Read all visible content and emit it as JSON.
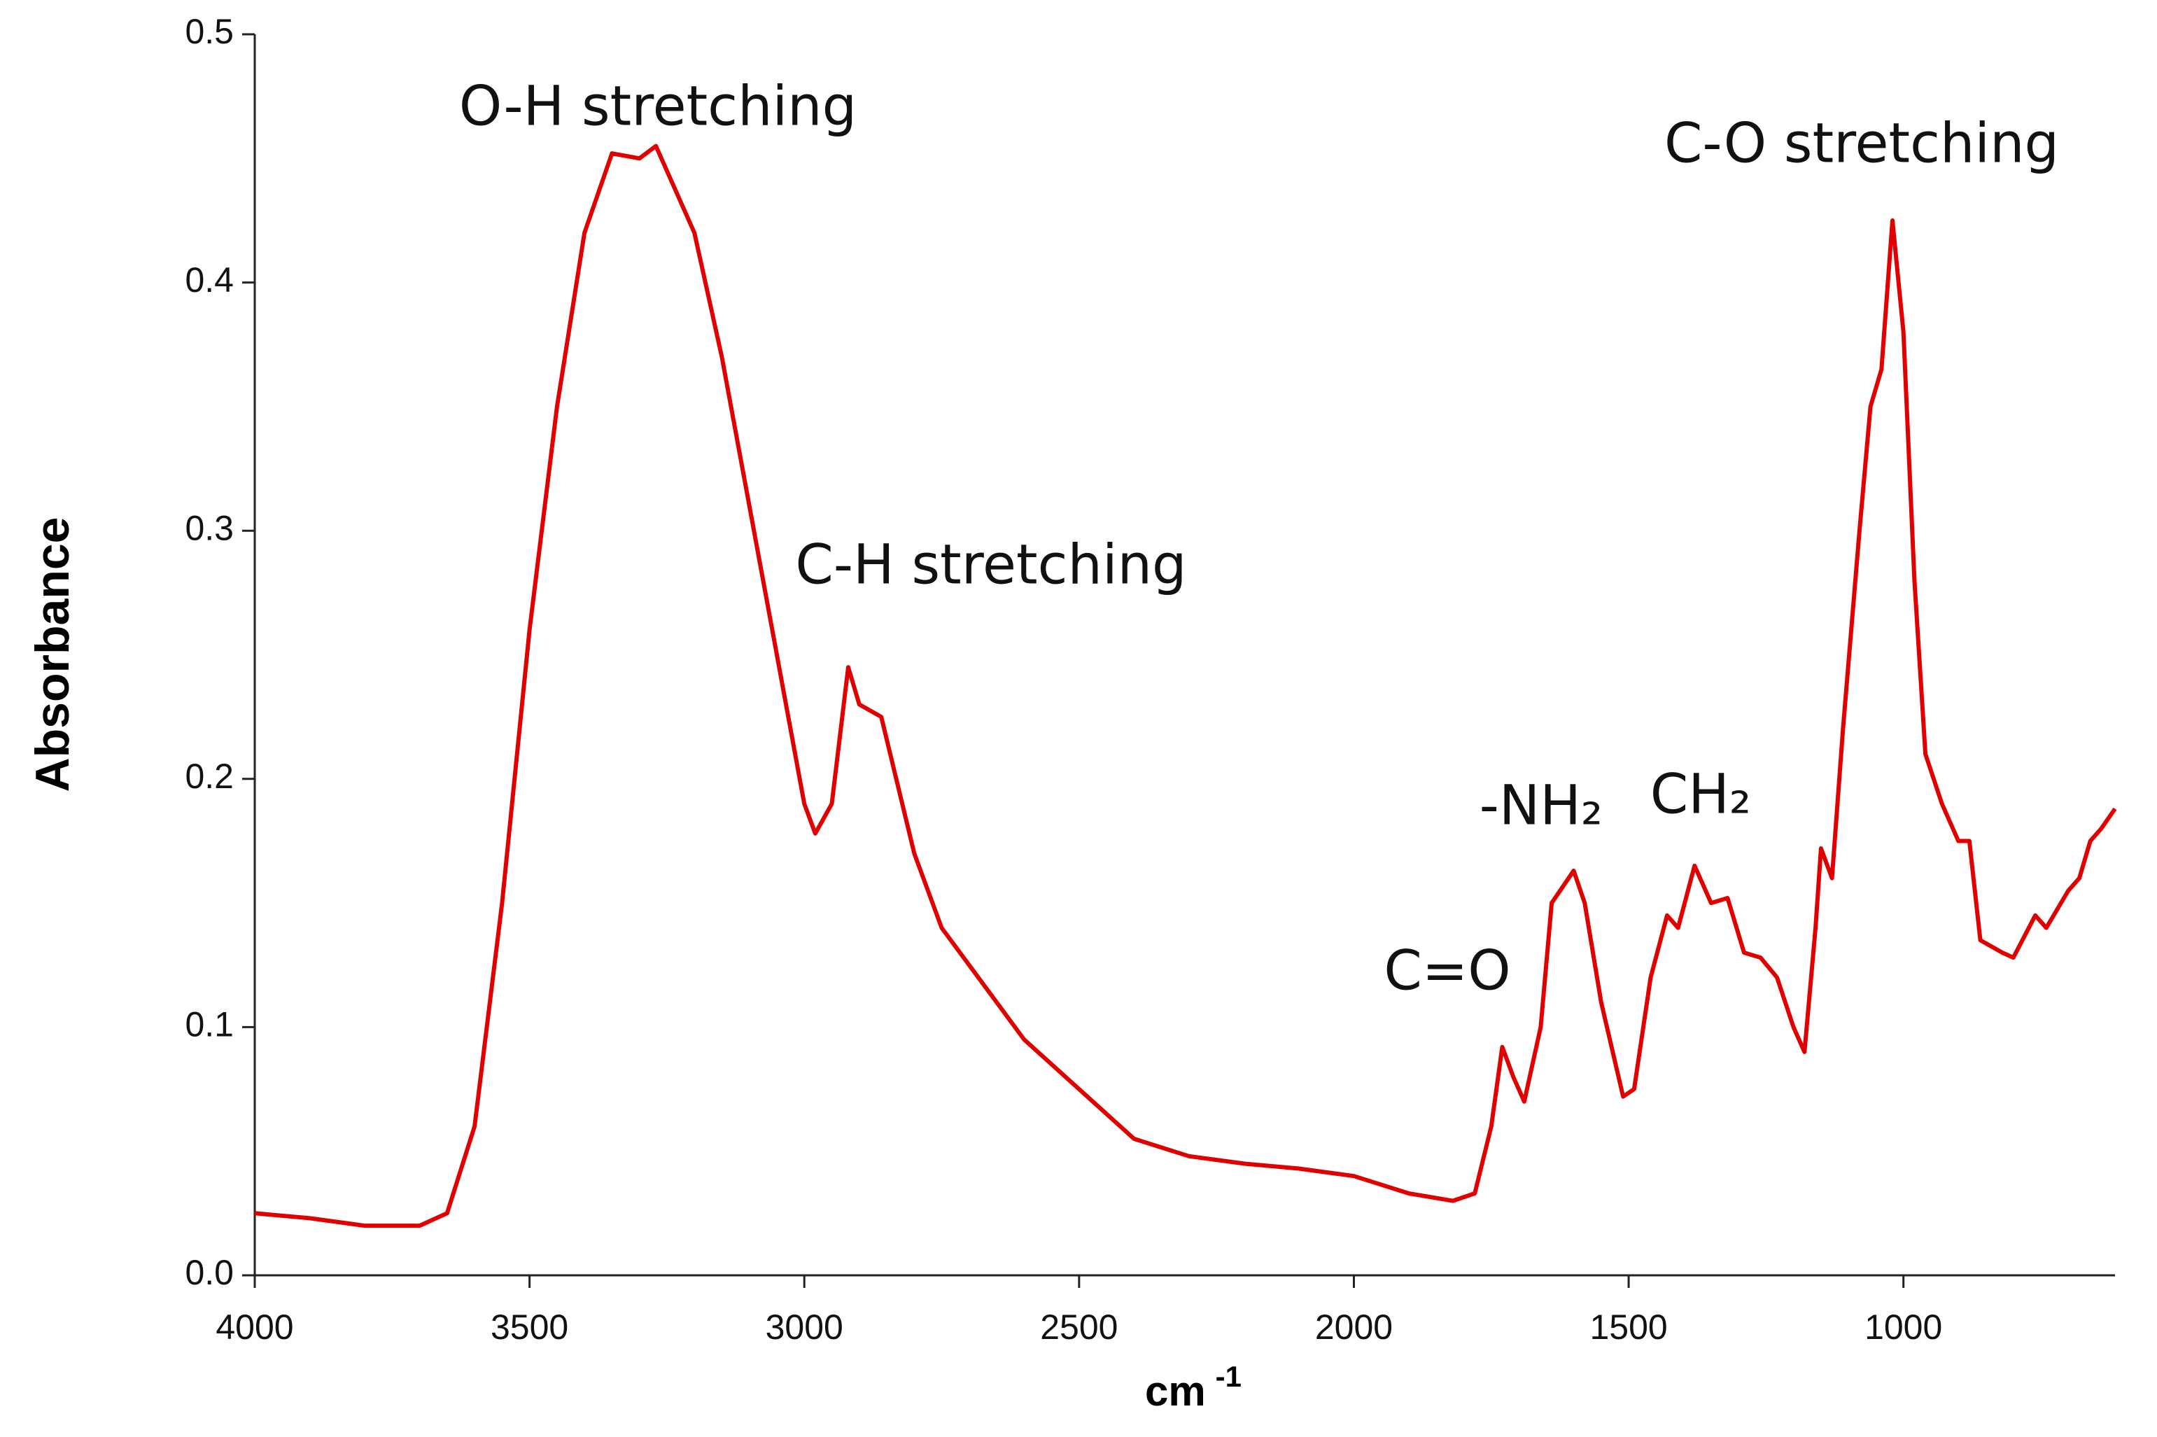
{
  "chart_data": {
    "type": "line",
    "x_label": "cm",
    "x_label_sup": "-1",
    "y_label": "Absorbance",
    "annotations": [
      "O-H stretching",
      "C-H stretching",
      "C-O stretching",
      "C=O",
      "-NH₂",
      "CH₂"
    ],
    "xlim": [
      4000,
      615
    ],
    "xticks": [
      4000,
      3500,
      3000,
      2500,
      2000,
      1500,
      1000
    ],
    "ylim": [
      0,
      0.5
    ],
    "yticks": [
      {
        "value": 0,
        "label": "0.0"
      },
      0.1,
      0.2,
      0.3,
      0.4,
      0.5
    ],
    "series": [
      {
        "color": "#e00000",
        "x": [
          4000,
          3900,
          3800,
          3700,
          3650,
          3600,
          3550,
          3500,
          3450,
          3400,
          3350,
          3300,
          3270,
          3200,
          3150,
          3100,
          3050,
          3000,
          2980,
          2950,
          2920,
          2900,
          2860,
          2800,
          2750,
          2700,
          2600,
          2500,
          2400,
          2300,
          2200,
          2100,
          2000,
          1900,
          1820,
          1780,
          1750,
          1730,
          1710,
          1690,
          1660,
          1640,
          1600,
          1580,
          1550,
          1510,
          1490,
          1460,
          1430,
          1410,
          1380,
          1350,
          1320,
          1290,
          1260,
          1230,
          1200,
          1180,
          1160,
          1150,
          1130,
          1110,
          1080,
          1060,
          1040,
          1020,
          1000,
          980,
          960,
          930,
          900,
          880,
          860,
          820,
          800,
          760,
          740,
          700,
          680,
          660,
          640,
          615
        ],
        "values": [
          0.025,
          0.023,
          0.02,
          0.02,
          0.025,
          0.06,
          0.15,
          0.26,
          0.35,
          0.42,
          0.452,
          0.45,
          0.455,
          0.42,
          0.37,
          0.31,
          0.25,
          0.19,
          0.178,
          0.19,
          0.245,
          0.23,
          0.225,
          0.17,
          0.14,
          0.125,
          0.095,
          0.075,
          0.055,
          0.048,
          0.045,
          0.043,
          0.04,
          0.033,
          0.03,
          0.033,
          0.06,
          0.092,
          0.08,
          0.07,
          0.1,
          0.15,
          0.163,
          0.15,
          0.11,
          0.072,
          0.075,
          0.12,
          0.145,
          0.14,
          0.165,
          0.15,
          0.152,
          0.13,
          0.128,
          0.12,
          0.1,
          0.09,
          0.14,
          0.172,
          0.16,
          0.22,
          0.3,
          0.35,
          0.365,
          0.425,
          0.38,
          0.28,
          0.21,
          0.19,
          0.175,
          0.175,
          0.135,
          0.13,
          0.128,
          0.145,
          0.14,
          0.155,
          0.16,
          0.175,
          0.18,
          0.188
        ]
      }
    ]
  }
}
